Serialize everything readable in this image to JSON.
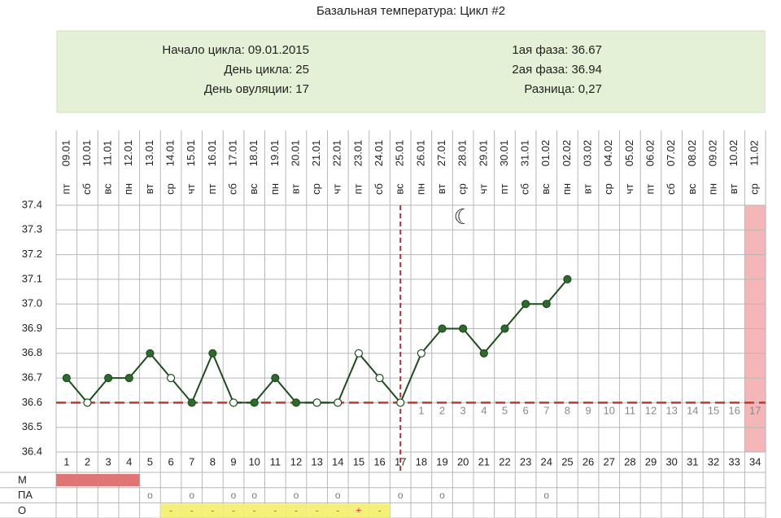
{
  "title": "Базальная температура: Цикл #2",
  "info": {
    "left": [
      "Начало цикла: 09.01.2015",
      "День цикла: 25",
      "День овуляции: 17"
    ],
    "right": [
      "1ая фаза: 36.67",
      "2ая фаза: 36.94",
      "Разница: 0,27"
    ]
  },
  "chart_data": {
    "type": "line",
    "categories": [
      1,
      2,
      3,
      4,
      5,
      6,
      7,
      8,
      9,
      10,
      11,
      12,
      13,
      14,
      15,
      16,
      17,
      18,
      19,
      20,
      21,
      22,
      23,
      24,
      25,
      26,
      27,
      28,
      29,
      30,
      31,
      32,
      33,
      34
    ],
    "weekdays": [
      "пт",
      "сб",
      "вс",
      "пн",
      "вт",
      "ср",
      "чт",
      "пт",
      "сб",
      "вс",
      "пн",
      "вт",
      "ср",
      "чт",
      "пт",
      "сб",
      "вс",
      "пн",
      "вт",
      "ср",
      "чт",
      "пт",
      "сб",
      "вс",
      "пн",
      "вт",
      "ср",
      "чт",
      "пт",
      "сб",
      "вс",
      "пн",
      "вт",
      "ср"
    ],
    "dates": [
      "09.01",
      "10.01",
      "11.01",
      "12.01",
      "13.01",
      "14.01",
      "15.01",
      "16.01",
      "17.01",
      "18.01",
      "19.01",
      "20.01",
      "21.01",
      "22.01",
      "23.01",
      "24.01",
      "25.01",
      "26.01",
      "27.01",
      "28.01",
      "29.01",
      "30.01",
      "31.01",
      "01.02",
      "02.02",
      "03.02",
      "04.02",
      "05.02",
      "06.02",
      "07.02",
      "08.02",
      "09.02",
      "10.02",
      "11.02"
    ],
    "values": [
      36.7,
      36.6,
      36.7,
      36.7,
      36.8,
      36.7,
      36.6,
      36.8,
      36.6,
      36.6,
      36.7,
      36.6,
      36.6,
      36.6,
      36.8,
      36.7,
      36.6,
      36.8,
      36.9,
      36.9,
      36.8,
      36.9,
      37.0,
      37.0,
      37.1,
      null,
      null,
      null,
      null,
      null,
      null,
      null,
      null,
      null
    ],
    "marker_fill": [
      "#2d6a2d",
      "#ffffff",
      "#2d6a2d",
      "#2d6a2d",
      "#2d6a2d",
      "#ffffff",
      "#2d6a2d",
      "#2d6a2d",
      "#ffffff",
      "#2d6a2d",
      "#2d6a2d",
      "#2d6a2d",
      "#ffffff",
      "#ffffff",
      "#ffffff",
      "#ffffff",
      "#ffffff",
      "#ffffff",
      "#2d6a2d",
      "#2d6a2d",
      "#2d6a2d",
      "#2d6a2d",
      "#2d6a2d",
      "#2d6a2d",
      "#2d6a2d",
      null,
      null,
      null,
      null,
      null,
      null,
      null,
      null,
      null
    ],
    "color": "#1e4d1e",
    "ylim": [
      36.4,
      37.4
    ],
    "yticks": [
      36.4,
      36.5,
      36.6,
      36.7,
      36.8,
      36.9,
      {
        "value": 37.0,
        "label": "37.0"
      },
      37.1,
      37.2,
      37.3,
      37.4
    ],
    "grid": true,
    "coverline": 36.6,
    "coverline_color": "#c0392b",
    "ovulation_day": 17,
    "luteal_days": [
      1,
      2,
      3,
      4,
      5,
      6,
      7,
      8,
      9,
      10,
      11,
      12,
      13,
      14,
      15,
      16,
      17
    ],
    "highlight_days": [
      34
    ],
    "highlight_color": "#f4b6b6",
    "moon": {
      "day": 20,
      "symbol": "☾"
    }
  },
  "rows": [
    {
      "label": "М",
      "color": "#e07575",
      "marked": [
        true,
        true,
        true,
        true,
        false,
        false,
        false,
        false,
        false,
        false,
        false,
        false,
        false,
        false,
        false,
        false,
        false,
        false,
        false,
        false,
        false,
        false,
        false,
        false,
        false,
        false,
        false,
        false,
        false,
        false,
        false,
        false,
        false,
        false
      ]
    },
    {
      "label": "ПА",
      "cells": [
        null,
        null,
        null,
        null,
        "o",
        null,
        "o",
        null,
        "o",
        "o",
        null,
        "o",
        null,
        "o",
        null,
        null,
        "o",
        null,
        "o",
        null,
        null,
        null,
        null,
        "o",
        null,
        null,
        null,
        null,
        null,
        null,
        null,
        null,
        null,
        null
      ]
    },
    {
      "label": "О",
      "color": "#f5f07a",
      "cells": [
        null,
        null,
        null,
        null,
        null,
        "-",
        "-",
        "-",
        "-",
        "-",
        "-",
        "-",
        "-",
        "-",
        "+",
        "-",
        null,
        null,
        null,
        null,
        null,
        null,
        null,
        null,
        null,
        null,
        null,
        null,
        null,
        null,
        null,
        null,
        null,
        null
      ]
    }
  ]
}
